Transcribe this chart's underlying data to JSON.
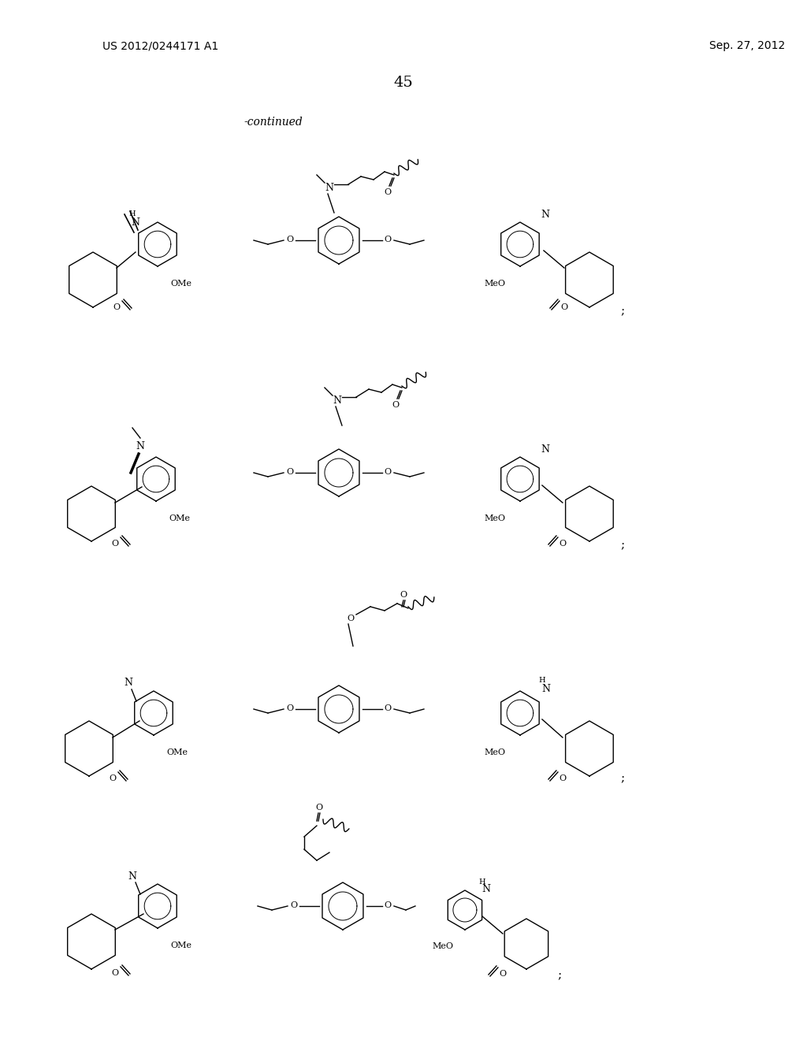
{
  "background_color": "#ffffff",
  "header_left": "US 2012/0244171 A1",
  "header_right": "Sep. 27, 2012",
  "page_number": "45",
  "continued_label": "-continued",
  "figure_width": 10.24,
  "figure_height": 13.2,
  "dpi": 100
}
